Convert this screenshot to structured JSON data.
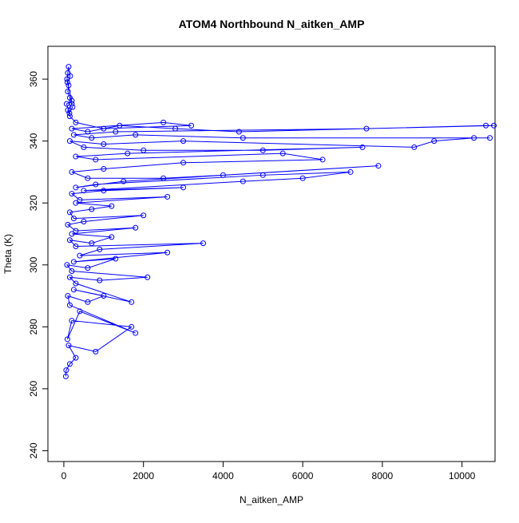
{
  "chart_data": {
    "type": "line",
    "markers": true,
    "title": "ATOM4 Northbound N_aitken_AMP",
    "x_label": "N_aitken_AMP",
    "y_label": "Theta (K)",
    "x": [
      50,
      60,
      150,
      300,
      120,
      800,
      1700,
      200,
      90,
      400,
      1800,
      150,
      100,
      600,
      1000,
      250,
      1700,
      300,
      150,
      900,
      2100,
      200,
      80,
      600,
      1300,
      250,
      2600,
      400,
      900,
      3500,
      300,
      150,
      700,
      1200,
      200,
      1800,
      300,
      100,
      500,
      2000,
      250,
      150,
      700,
      1200,
      300,
      2600,
      400,
      200,
      1000,
      3000,
      500,
      4500,
      6000,
      7200,
      5000,
      800,
      300,
      1500,
      7900,
      4000,
      2500,
      600,
      200,
      1000,
      3000,
      6500,
      5500,
      800,
      300,
      1600,
      7500,
      5000,
      2000,
      500,
      150,
      1000,
      3000,
      8800,
      9300,
      10300,
      10700,
      4500,
      1800,
      700,
      250,
      1300,
      7600,
      10600,
      10800,
      4400,
      2800,
      1400,
      600,
      200,
      2500,
      3200,
      1000,
      300,
      150,
      100,
      200,
      150,
      100,
      120,
      80,
      100,
      120,
      160,
      90,
      200,
      70,
      140,
      220
    ],
    "series": [
      {
        "name": "Theta",
        "color": "#0000ff",
        "values": [
          264,
          266,
          268,
          270,
          274,
          272,
          280,
          282,
          276,
          285,
          278,
          287,
          290,
          288,
          290,
          292,
          288,
          294,
          296,
          295,
          296,
          298,
          300,
          299,
          302,
          301,
          304,
          303,
          305,
          307,
          306,
          308,
          307,
          309,
          310,
          312,
          311,
          313,
          314,
          316,
          315,
          317,
          318,
          319,
          320,
          322,
          321,
          323,
          324,
          325,
          324,
          327,
          328,
          330,
          329,
          326,
          325,
          327,
          332,
          329,
          328,
          328,
          330,
          331,
          333,
          334,
          336,
          334,
          335,
          336,
          338,
          337,
          337,
          338,
          340,
          339,
          340,
          338,
          340,
          341,
          341,
          341,
          342,
          341,
          342,
          343,
          344,
          345,
          345,
          343,
          344,
          345,
          343,
          344,
          346,
          345,
          344,
          346,
          348,
          350,
          352,
          354,
          356,
          358,
          360,
          362,
          364,
          361,
          359,
          353,
          352,
          349,
          351
        ]
      }
    ],
    "xlim": [
      -400,
      10830
    ],
    "ylim": [
      236.5,
      370.6
    ],
    "xticks": [
      0,
      2000,
      4000,
      6000,
      8000,
      10000
    ],
    "yticks": [
      240,
      260,
      280,
      300,
      320,
      340,
      360
    ]
  }
}
